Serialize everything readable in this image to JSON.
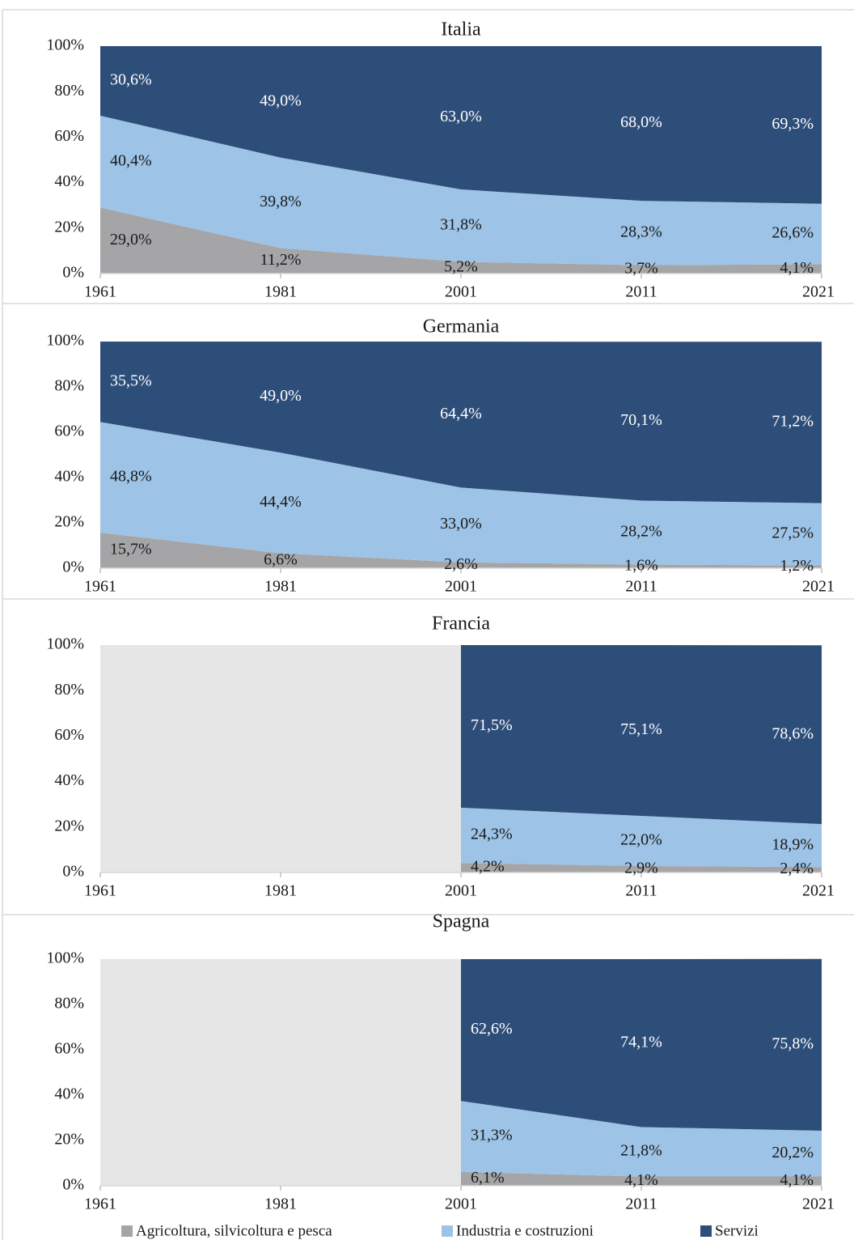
{
  "chart_data": [
    {
      "type": "area",
      "title": "Italia",
      "categories": [
        "1961",
        "1981",
        "2001",
        "2011",
        "2021"
      ],
      "ylim": [
        0,
        100
      ],
      "yticks": [
        {
          "value": 0,
          "label": "0%"
        },
        {
          "value": 20,
          "label": "20%"
        },
        {
          "value": 40,
          "label": "40%"
        },
        {
          "value": 60,
          "label": "60%"
        },
        {
          "value": 80,
          "label": "80%"
        },
        {
          "value": 100,
          "label": "100%"
        }
      ],
      "series": [
        {
          "color": "#a5a5a7",
          "values": [
            29.0,
            11.2,
            5.2,
            3.7,
            4.1
          ],
          "value_labels": [
            "29,0%",
            "11,2%",
            "5,2%",
            "3,7%",
            "4,1%"
          ]
        },
        {
          "color": "#9dc3e6",
          "values": [
            40.4,
            39.8,
            31.8,
            28.3,
            26.6
          ],
          "value_labels": [
            "40,4%",
            "39,8%",
            "31,8%",
            "28,3%",
            "26,6%"
          ]
        },
        {
          "color": "#2e4e7a",
          "values": [
            30.6,
            49.0,
            63.0,
            68.0,
            69.3
          ],
          "value_labels": [
            "30,6%",
            "49,0%",
            "63,0%",
            "68,0%",
            "69,3%"
          ]
        }
      ]
    },
    {
      "type": "area",
      "title": "Germania",
      "categories": [
        "1961",
        "1981",
        "2001",
        "2011",
        "2021"
      ],
      "ylim": [
        0,
        100
      ],
      "yticks": [
        {
          "value": 0,
          "label": "0%"
        },
        {
          "value": 20,
          "label": "20%"
        },
        {
          "value": 40,
          "label": "40%"
        },
        {
          "value": 60,
          "label": "60%"
        },
        {
          "value": 80,
          "label": "80%"
        },
        {
          "value": 100,
          "label": "100%"
        }
      ],
      "series": [
        {
          "color": "#a5a5a7",
          "values": [
            15.7,
            6.6,
            2.6,
            1.6,
            1.2
          ],
          "value_labels": [
            "15,7%",
            "6,6%",
            "2,6%",
            "1,6%",
            "1,2%"
          ]
        },
        {
          "color": "#9dc3e6",
          "values": [
            48.8,
            44.4,
            33.0,
            28.2,
            27.5
          ],
          "value_labels": [
            "48,8%",
            "44,4%",
            "33,0%",
            "28,2%",
            "27,5%"
          ]
        },
        {
          "color": "#2e4e7a",
          "values": [
            35.5,
            49.0,
            64.4,
            70.1,
            71.2
          ],
          "value_labels": [
            "35,5%",
            "49,0%",
            "64,4%",
            "70,1%",
            "71,2%"
          ]
        }
      ]
    },
    {
      "type": "area",
      "title": "Francia",
      "categories": [
        "1961",
        "1981",
        "2001",
        "2011",
        "2021"
      ],
      "ylim": [
        0,
        100
      ],
      "yticks": [
        {
          "value": 0,
          "label": "0%"
        },
        {
          "value": 20,
          "label": "20%"
        },
        {
          "value": 40,
          "label": "40%"
        },
        {
          "value": 60,
          "label": "60%"
        },
        {
          "value": 80,
          "label": "80%"
        },
        {
          "value": 100,
          "label": "100%"
        }
      ],
      "series": [
        {
          "color": "#a5a5a7",
          "values": [
            null,
            null,
            4.2,
            2.9,
            2.4
          ],
          "value_labels": [
            null,
            null,
            "4,2%",
            "2,9%",
            "2,4%"
          ]
        },
        {
          "color": "#9dc3e6",
          "values": [
            null,
            null,
            24.3,
            22.0,
            18.9
          ],
          "value_labels": [
            null,
            null,
            "24,3%",
            "22,0%",
            "18,9%"
          ]
        },
        {
          "color": "#2e4e7a",
          "values": [
            null,
            null,
            71.5,
            75.1,
            78.6
          ],
          "value_labels": [
            null,
            null,
            "71,5%",
            "75,1%",
            "78,6%"
          ]
        }
      ]
    },
    {
      "type": "area",
      "title": "Spagna",
      "categories": [
        "1961",
        "1981",
        "2001",
        "2011",
        "2021"
      ],
      "ylim": [
        0,
        100
      ],
      "yticks": [
        {
          "value": 0,
          "label": "0%"
        },
        {
          "value": 20,
          "label": "20%"
        },
        {
          "value": 40,
          "label": "40%"
        },
        {
          "value": 60,
          "label": "60%"
        },
        {
          "value": 80,
          "label": "80%"
        },
        {
          "value": 100,
          "label": "100%"
        }
      ],
      "series": [
        {
          "name": "Agricoltura, silvicoltura e pesca",
          "color": "#a5a5a7",
          "values": [
            null,
            null,
            6.1,
            4.1,
            4.1
          ],
          "value_labels": [
            null,
            null,
            "6,1%",
            "4,1%",
            "4,1%"
          ]
        },
        {
          "name": "Industria e costruzioni",
          "color": "#9dc3e6",
          "values": [
            null,
            null,
            31.3,
            21.8,
            20.2
          ],
          "value_labels": [
            null,
            null,
            "31,3%",
            "21,8%",
            "20,2%"
          ]
        },
        {
          "name": "Servizi",
          "color": "#2e4e7a",
          "values": [
            null,
            null,
            62.6,
            74.1,
            75.8
          ],
          "value_labels": [
            null,
            null,
            "62,6%",
            "74,1%",
            "75,8%"
          ]
        }
      ]
    }
  ]
}
